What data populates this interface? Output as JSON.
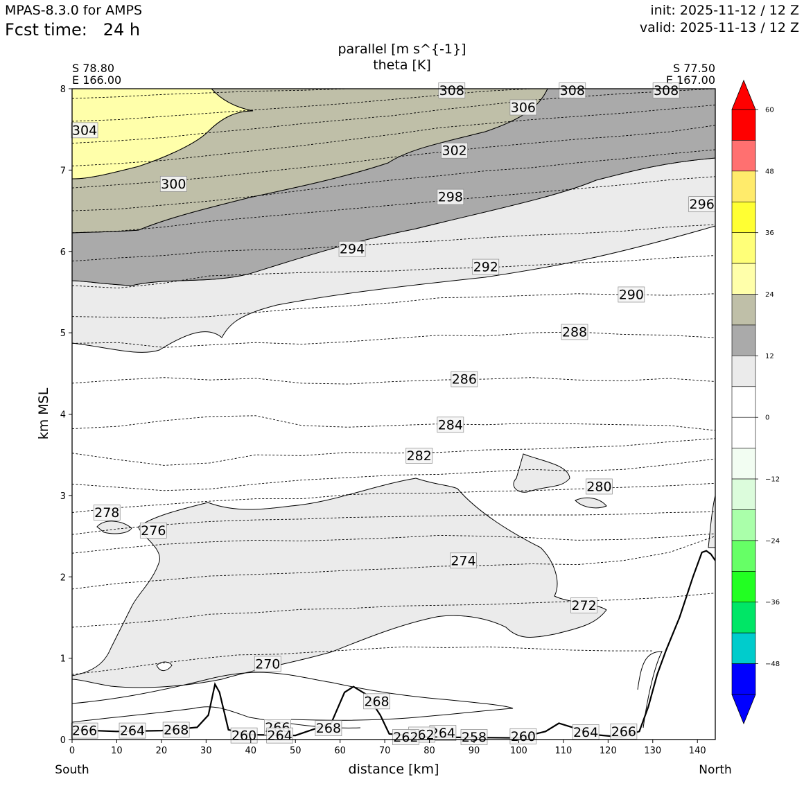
{
  "header": {
    "model": "MPAS-8.3.0 for AMPS",
    "fcst": "Fcst time:   24 h",
    "init": "init: 2025-11-12 / 12 Z",
    "valid": "valid: 2025-11-13 / 12 Z"
  },
  "chart_data": {
    "type": "contour",
    "title": "parallel [m s^{-1}]",
    "subtitle": "theta [K]",
    "xlabel": "distance [km]",
    "ylabel": "km MSL",
    "xlim": [
      0,
      144
    ],
    "ylim": [
      0,
      8
    ],
    "xticks": [
      "0",
      "10",
      "20",
      "30",
      "40",
      "50",
      "60",
      "70",
      "80",
      "90",
      "100",
      "110",
      "120",
      "130",
      "140"
    ],
    "yticks": [
      "0",
      "1",
      "2",
      "3",
      "4",
      "5",
      "6",
      "7",
      "8"
    ],
    "endpoints": {
      "left": {
        "lat": "S 78.80",
        "lon": "E 166.00",
        "dir": "South"
      },
      "right": {
        "lat": "S 77.50",
        "lon": "E 167.00",
        "dir": "North"
      }
    },
    "colorbar": {
      "ticks": [
        "60",
        "48",
        "36",
        "24",
        "12",
        "0",
        "−12",
        "−24",
        "−36",
        "−48"
      ],
      "levels": [
        60,
        54,
        48,
        42,
        36,
        30,
        24,
        18,
        12,
        6,
        0,
        -6,
        -12,
        -18,
        -24,
        -30,
        -36,
        -42,
        -48,
        -54
      ],
      "colors": [
        "#ff0000",
        "#ff7070",
        "#ffeb6b",
        "#ffff33",
        "#ffff78",
        "#ffffaa",
        "#bfbfa8",
        "#aaaaaa",
        "#ebebeb",
        "#ffffff",
        "#ffffff",
        "#f2fdf2",
        "#dcfcdc",
        "#aaffaa",
        "#66ff66",
        "#22ff22",
        "#00e666",
        "#00cccc",
        "#0000ff"
      ],
      "over_color": "#ff0000",
      "under_color": "#0000ff"
    },
    "theta_labels": [
      {
        "text": "308",
        "x": 85.0,
        "y": 7.98
      },
      {
        "text": "308",
        "x": 112.0,
        "y": 7.98
      },
      {
        "text": "308",
        "x": 133.0,
        "y": 7.98
      },
      {
        "text": "306",
        "x": 101.0,
        "y": 7.77
      },
      {
        "text": "304",
        "x": 2.8,
        "y": 7.49
      },
      {
        "text": "302",
        "x": 85.6,
        "y": 7.24
      },
      {
        "text": "300",
        "x": 22.7,
        "y": 6.83
      },
      {
        "text": "298",
        "x": 84.7,
        "y": 6.67
      },
      {
        "text": "296",
        "x": 141.0,
        "y": 6.58
      },
      {
        "text": "294",
        "x": 62.7,
        "y": 6.03
      },
      {
        "text": "292",
        "x": 92.6,
        "y": 5.81
      },
      {
        "text": "290",
        "x": 125.2,
        "y": 5.47
      },
      {
        "text": "288",
        "x": 112.5,
        "y": 5.01
      },
      {
        "text": "286",
        "x": 87.8,
        "y": 4.43
      },
      {
        "text": "284",
        "x": 84.7,
        "y": 3.87
      },
      {
        "text": "282",
        "x": 77.7,
        "y": 3.49
      },
      {
        "text": "280",
        "x": 118.0,
        "y": 3.11
      },
      {
        "text": "278",
        "x": 7.8,
        "y": 2.79
      },
      {
        "text": "276",
        "x": 18.2,
        "y": 2.57
      },
      {
        "text": "274",
        "x": 87.6,
        "y": 2.2
      },
      {
        "text": "272",
        "x": 114.6,
        "y": 1.65
      },
      {
        "text": "270",
        "x": 43.8,
        "y": 0.93
      },
      {
        "text": "268",
        "x": 68.2,
        "y": 0.47
      },
      {
        "text": "268",
        "x": 57.4,
        "y": 0.14
      },
      {
        "text": "268",
        "x": 23.3,
        "y": 0.12
      },
      {
        "text": "266",
        "x": 2.8,
        "y": 0.11
      },
      {
        "text": "266",
        "x": 46.0,
        "y": 0.15
      },
      {
        "text": "266",
        "x": 123.5,
        "y": 0.1
      },
      {
        "text": "264",
        "x": 13.5,
        "y": 0.11
      },
      {
        "text": "264",
        "x": 83.0,
        "y": 0.08
      },
      {
        "text": "264",
        "x": 115.0,
        "y": 0.09
      },
      {
        "text": "264",
        "x": 46.5,
        "y": 0.05
      },
      {
        "text": "262",
        "x": 78.3,
        "y": 0.06
      },
      {
        "text": "262",
        "x": 74.7,
        "y": 0.03
      },
      {
        "text": "260",
        "x": 38.5,
        "y": 0.05
      },
      {
        "text": "260",
        "x": 101.0,
        "y": 0.04
      },
      {
        "text": "258",
        "x": 90.0,
        "y": 0.03
      }
    ],
    "theta_lines": [
      {
        "y": [
          0.8,
          0.86,
          0.93,
          0.99,
          1.04,
          1.05,
          1.08,
          1.11,
          1.14,
          1.13,
          1.14,
          1.12,
          1.1,
          1.09,
          1.09
        ],
        "end": 130
      },
      {
        "y": [
          1.38,
          1.42,
          1.47,
          1.54,
          1.56,
          1.6,
          1.61,
          1.64,
          1.65,
          1.66,
          1.68,
          1.7,
          1.72,
          1.75,
          1.8
        ],
        "end": 144
      },
      {
        "y": [
          1.85,
          1.92,
          1.96,
          2.01,
          2.03,
          2.05,
          2.08,
          2.1,
          2.13,
          2.14,
          2.16,
          2.15,
          2.2,
          2.3,
          2.5
        ],
        "end": 144
      },
      {
        "y": [
          2.29,
          2.35,
          2.4,
          2.43,
          2.45,
          2.44,
          2.46,
          2.48,
          2.51,
          2.5,
          2.48,
          2.45,
          2.46,
          2.49,
          2.53
        ],
        "end": 144
      },
      {
        "y": [
          2.52,
          2.59,
          2.64,
          2.68,
          2.7,
          2.71,
          2.73,
          2.74,
          2.75,
          2.76,
          2.76,
          2.76,
          2.77,
          2.79,
          2.8
        ],
        "end": 144
      },
      {
        "y": [
          2.79,
          2.85,
          2.89,
          2.93,
          2.96,
          2.96,
          3.01,
          3.03,
          3.03,
          3.05,
          3.06,
          3.08,
          3.1,
          3.12,
          3.15
        ],
        "end": 144
      },
      {
        "y": [
          3.14,
          3.1,
          3.06,
          3.08,
          3.14,
          3.19,
          3.22,
          3.25,
          3.26,
          3.29,
          3.32,
          3.3,
          3.32,
          3.38,
          3.45
        ],
        "end": 144
      },
      {
        "y": [
          3.52,
          3.44,
          3.37,
          3.4,
          3.5,
          3.49,
          3.53,
          3.52,
          3.53,
          3.56,
          3.57,
          3.59,
          3.61,
          3.66,
          3.7
        ],
        "end": 144
      },
      {
        "y": [
          3.82,
          3.85,
          3.92,
          3.97,
          3.98,
          3.86,
          3.84,
          3.86,
          3.88,
          3.87,
          3.89,
          3.88,
          3.87,
          3.86,
          3.8
        ],
        "end": 144
      },
      {
        "y": [
          4.38,
          4.42,
          4.45,
          4.42,
          4.44,
          4.38,
          4.37,
          4.4,
          4.42,
          4.43,
          4.45,
          4.42,
          4.41,
          4.44,
          4.4
        ],
        "end": 144
      },
      {
        "y": [
          4.87,
          4.88,
          4.82,
          4.85,
          4.88,
          4.86,
          4.89,
          4.93,
          4.97,
          4.96,
          5.0,
          5.01,
          4.98,
          4.97,
          4.94
        ],
        "end": 144
      },
      {
        "y": [
          5.2,
          5.19,
          5.18,
          5.2,
          5.25,
          5.3,
          5.33,
          5.37,
          5.43,
          5.44,
          5.46,
          5.48,
          5.47,
          5.46,
          5.48
        ],
        "end": 144
      },
      {
        "y": [
          5.58,
          5.55,
          5.61,
          5.7,
          5.72,
          5.74,
          5.75,
          5.76,
          5.79,
          5.8,
          5.83,
          5.86,
          5.88,
          5.92,
          5.95
        ],
        "end": 144
      },
      {
        "y": [
          5.88,
          5.92,
          5.95,
          6.0,
          6.02,
          6.03,
          6.07,
          6.1,
          6.13,
          6.17,
          6.2,
          6.22,
          6.25,
          6.3,
          6.33
        ],
        "end": 144
      },
      {
        "y": [
          6.23,
          6.25,
          6.3,
          6.37,
          6.42,
          6.47,
          6.52,
          6.57,
          6.62,
          6.67,
          6.72,
          6.77,
          6.82,
          6.88,
          6.92
        ],
        "end": 144
      },
      {
        "y": [
          6.5,
          6.52,
          6.57,
          6.62,
          6.68,
          6.75,
          6.82,
          6.88,
          6.93,
          6.99,
          7.03,
          7.09,
          7.14,
          7.2,
          7.25
        ],
        "end": 144
      },
      {
        "y": [
          6.78,
          6.82,
          6.86,
          6.91,
          6.97,
          7.03,
          7.09,
          7.16,
          7.22,
          7.28,
          7.33,
          7.38,
          7.42,
          7.47,
          7.55
        ],
        "end": 144
      },
      {
        "y": [
          7.05,
          7.08,
          7.12,
          7.18,
          7.24,
          7.3,
          7.37,
          7.44,
          7.52,
          7.57,
          7.62,
          7.66,
          7.7,
          7.75,
          7.8
        ],
        "end": 144
      },
      {
        "y": [
          7.33,
          7.36,
          7.4,
          7.46,
          7.51,
          7.57,
          7.62,
          7.67,
          7.74,
          7.8,
          7.86,
          7.9,
          7.94,
          7.97,
          8.0
        ],
        "end": 144
      },
      {
        "y": [
          7.6,
          7.62,
          7.66,
          7.7,
          7.74,
          7.78,
          7.82,
          7.87,
          7.92,
          7.97,
          8.0,
          8.0,
          8.0,
          8.0,
          8.0
        ],
        "end": 144
      },
      {
        "y": [
          7.88,
          7.9,
          7.93,
          7.95,
          7.97,
          7.98,
          8.0,
          8.0,
          8.0,
          8.0,
          8.0,
          8.0,
          8.0,
          8.0,
          8.0
        ],
        "end": 144
      }
    ],
    "terrain": [
      [
        0,
        0.12
      ],
      [
        10,
        0.1
      ],
      [
        20,
        0.11
      ],
      [
        28,
        0.15
      ],
      [
        30.5,
        0.3
      ],
      [
        32,
        0.68
      ],
      [
        33,
        0.58
      ],
      [
        35,
        0.12
      ],
      [
        40,
        0.06
      ],
      [
        50,
        0.05
      ],
      [
        58,
        0.2
      ],
      [
        61,
        0.58
      ],
      [
        63,
        0.65
      ],
      [
        66,
        0.55
      ],
      [
        69,
        0.3
      ],
      [
        71,
        0.07
      ],
      [
        80,
        0.03
      ],
      [
        100,
        0.02
      ],
      [
        106,
        0.1
      ],
      [
        109,
        0.2
      ],
      [
        112,
        0.15
      ],
      [
        117,
        0.06
      ],
      [
        123,
        0.03
      ],
      [
        127,
        0.1
      ],
      [
        129,
        0.4
      ],
      [
        131,
        0.8
      ],
      [
        133,
        1.1
      ],
      [
        136,
        1.5
      ],
      [
        139,
        2.0
      ],
      [
        141,
        2.3
      ],
      [
        142,
        2.32
      ],
      [
        143,
        2.28
      ],
      [
        144,
        2.2
      ]
    ]
  }
}
